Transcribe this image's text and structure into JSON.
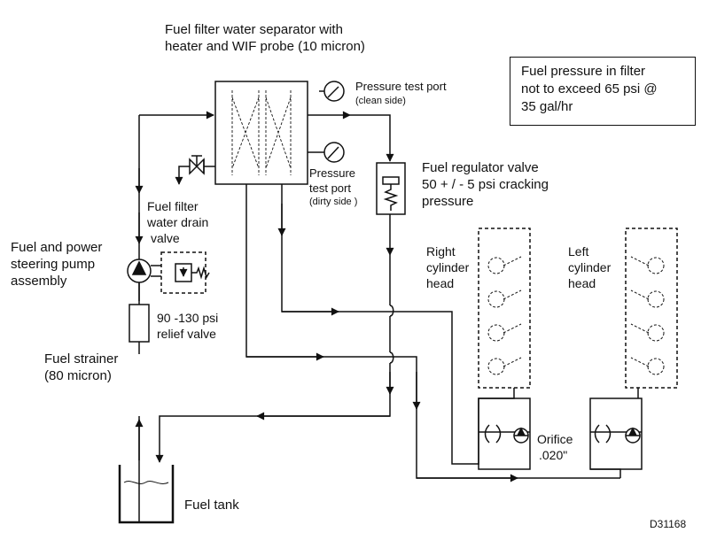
{
  "labels": {
    "separator": [
      "Fuel filter water separator with",
      "heater and WIF probe (10 micron)"
    ],
    "pressure_port_clean": [
      "Pressure test port",
      "(clean side)"
    ],
    "pressure_port_dirty": [
      "Pressure",
      "test port",
      "(dirty side )"
    ],
    "regulator": [
      "Fuel regulator valve",
      "50 + / - 5 psi cracking",
      "pressure"
    ],
    "drain_valve": [
      "Fuel filter",
      "water drain",
      "valve"
    ],
    "pump": [
      "Fuel and power",
      "steering pump",
      "assembly"
    ],
    "relief_valve": [
      "90 -130 psi",
      "relief valve"
    ],
    "strainer": [
      "Fuel strainer",
      "(80 micron)"
    ],
    "right_head": [
      "Right",
      "cylinder",
      "head"
    ],
    "left_head": [
      "Left",
      "cylinder",
      "head"
    ],
    "orifice": [
      "Orifice",
      ".020\""
    ],
    "fuel_tank": "Fuel tank"
  },
  "note": [
    "Fuel pressure in filter",
    "not to exceed 65 psi @",
    "35 gal/hr"
  ],
  "figure_id": "D31168",
  "colors": {
    "line": "#111111",
    "background": "#ffffff"
  }
}
